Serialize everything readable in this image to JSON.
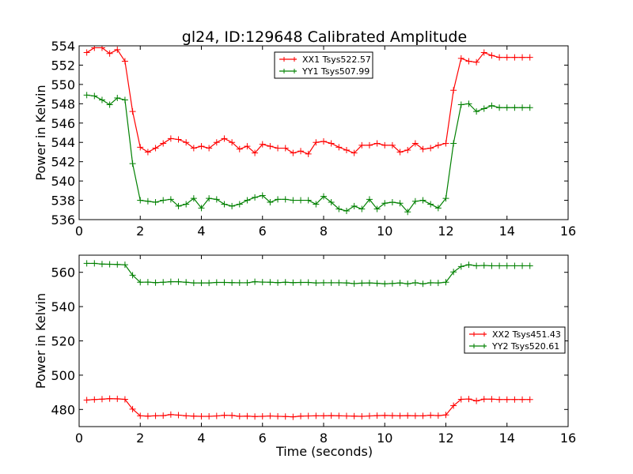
{
  "figure": {
    "title": "gl24, ID:129648 Calibrated Amplitude",
    "xlabel": "Time (seconds)"
  },
  "colors": {
    "red": "#ff0000",
    "green": "#008000"
  },
  "chart_data": [
    {
      "type": "line",
      "title": "gl24, ID:129648 Calibrated Amplitude",
      "xlabel": "",
      "ylabel": "Power in Kelvin",
      "xlim": [
        0,
        16
      ],
      "ylim": [
        536,
        554
      ],
      "xticks": [
        0,
        2,
        4,
        6,
        8,
        10,
        12,
        14,
        16
      ],
      "yticks": [
        536,
        538,
        540,
        542,
        544,
        546,
        548,
        550,
        552,
        554
      ],
      "grid": false,
      "legend_position": "top-center",
      "series": [
        {
          "name": "XX1 Tsys522.57",
          "color": "#ff0000",
          "marker": "+",
          "x": [
            0.25,
            0.5,
            0.75,
            1.0,
            1.25,
            1.5,
            1.75,
            2.0,
            2.25,
            2.5,
            2.75,
            3.0,
            3.25,
            3.5,
            3.75,
            4.0,
            4.25,
            4.5,
            4.75,
            5.0,
            5.25,
            5.5,
            5.75,
            6.0,
            6.25,
            6.5,
            6.75,
            7.0,
            7.25,
            7.5,
            7.75,
            8.0,
            8.25,
            8.5,
            8.75,
            9.0,
            9.25,
            9.5,
            9.75,
            10.0,
            10.25,
            10.5,
            10.75,
            11.0,
            11.25,
            11.5,
            11.75,
            12.0,
            12.25,
            12.5,
            12.75,
            13.0,
            13.25,
            13.5,
            13.75,
            14.0,
            14.25,
            14.5,
            14.75
          ],
          "y": [
            553.3,
            553.8,
            553.8,
            553.2,
            553.6,
            552.4,
            547.2,
            543.5,
            543.0,
            543.4,
            543.9,
            544.4,
            544.3,
            544.0,
            543.4,
            543.6,
            543.4,
            544.0,
            544.4,
            544.0,
            543.3,
            543.6,
            542.9,
            543.8,
            543.6,
            543.4,
            543.4,
            542.9,
            543.1,
            542.8,
            544.0,
            544.1,
            543.9,
            543.5,
            543.2,
            542.9,
            543.7,
            543.7,
            543.9,
            543.7,
            543.7,
            543.0,
            543.2,
            543.9,
            543.3,
            543.4,
            543.7,
            543.9,
            549.4,
            552.7,
            552.4,
            552.3,
            553.3,
            553.0,
            552.8,
            552.8,
            552.8,
            552.8,
            552.8
          ]
        },
        {
          "name": "YY1 Tsys507.99",
          "color": "#008000",
          "marker": "+",
          "x": [
            0.25,
            0.5,
            0.75,
            1.0,
            1.25,
            1.5,
            1.75,
            2.0,
            2.25,
            2.5,
            2.75,
            3.0,
            3.25,
            3.5,
            3.75,
            4.0,
            4.25,
            4.5,
            4.75,
            5.0,
            5.25,
            5.5,
            5.75,
            6.0,
            6.25,
            6.5,
            6.75,
            7.0,
            7.25,
            7.5,
            7.75,
            8.0,
            8.25,
            8.5,
            8.75,
            9.0,
            9.25,
            9.5,
            9.75,
            10.0,
            10.25,
            10.5,
            10.75,
            11.0,
            11.25,
            11.5,
            11.75,
            12.0,
            12.25,
            12.5,
            12.75,
            13.0,
            13.25,
            13.5,
            13.75,
            14.0,
            14.25,
            14.5,
            14.75
          ],
          "y": [
            548.9,
            548.8,
            548.4,
            547.9,
            548.6,
            548.4,
            541.8,
            538.0,
            537.9,
            537.8,
            538.0,
            538.1,
            537.4,
            537.6,
            538.2,
            537.2,
            538.2,
            538.1,
            537.6,
            537.4,
            537.6,
            538.0,
            538.3,
            538.5,
            537.8,
            538.1,
            538.1,
            538.0,
            538.0,
            538.0,
            537.6,
            538.4,
            537.8,
            537.1,
            536.9,
            537.4,
            537.1,
            538.1,
            537.1,
            537.7,
            537.8,
            537.7,
            536.8,
            537.9,
            538.0,
            537.6,
            537.2,
            538.2,
            543.9,
            547.9,
            548.0,
            547.2,
            547.5,
            547.8,
            547.6,
            547.6,
            547.6,
            547.6,
            547.6
          ]
        }
      ]
    },
    {
      "type": "line",
      "title": "",
      "xlabel": "Time (seconds)",
      "ylabel": "Power in Kelvin",
      "xlim": [
        0,
        16
      ],
      "ylim": [
        470,
        570
      ],
      "xticks": [
        0,
        2,
        4,
        6,
        8,
        10,
        12,
        14,
        16
      ],
      "yticks": [
        480,
        500,
        520,
        540,
        560
      ],
      "grid": false,
      "legend_position": "center-right",
      "series": [
        {
          "name": "XX2 Tsys451.43",
          "color": "#ff0000",
          "marker": "+",
          "x": [
            0.25,
            0.5,
            0.75,
            1.0,
            1.25,
            1.5,
            1.75,
            2.0,
            2.25,
            2.5,
            2.75,
            3.0,
            3.25,
            3.5,
            3.75,
            4.0,
            4.25,
            4.5,
            4.75,
            5.0,
            5.25,
            5.5,
            5.75,
            6.0,
            6.25,
            6.5,
            6.75,
            7.0,
            7.25,
            7.5,
            7.75,
            8.0,
            8.25,
            8.5,
            8.75,
            9.0,
            9.25,
            9.5,
            9.75,
            10.0,
            10.25,
            10.5,
            10.75,
            11.0,
            11.25,
            11.5,
            11.75,
            12.0,
            12.25,
            12.5,
            12.75,
            13.0,
            13.25,
            13.5,
            13.75,
            14.0,
            14.25,
            14.5,
            14.75
          ],
          "y": [
            485.5,
            485.8,
            486.0,
            486.3,
            486.2,
            485.9,
            480.2,
            476.3,
            476.1,
            476.3,
            476.4,
            477.0,
            476.7,
            476.3,
            476.1,
            476.0,
            476.0,
            476.2,
            476.6,
            476.5,
            476.0,
            476.1,
            475.9,
            476.0,
            476.2,
            476.0,
            475.9,
            475.7,
            476.1,
            476.2,
            476.3,
            476.3,
            476.4,
            476.3,
            476.2,
            476.1,
            476.0,
            476.2,
            476.4,
            476.5,
            476.4,
            476.3,
            476.4,
            476.3,
            476.3,
            476.6,
            476.4,
            476.8,
            482.2,
            485.9,
            486.1,
            485.0,
            486.0,
            486.0,
            485.8,
            485.8,
            485.8,
            485.8,
            485.8
          ]
        },
        {
          "name": "YY2 Tsys520.61",
          "color": "#008000",
          "marker": "+",
          "x": [
            0.25,
            0.5,
            0.75,
            1.0,
            1.25,
            1.5,
            1.75,
            2.0,
            2.25,
            2.5,
            2.75,
            3.0,
            3.25,
            3.5,
            3.75,
            4.0,
            4.25,
            4.5,
            4.75,
            5.0,
            5.25,
            5.5,
            5.75,
            6.0,
            6.25,
            6.5,
            6.75,
            7.0,
            7.25,
            7.5,
            7.75,
            8.0,
            8.25,
            8.5,
            8.75,
            9.0,
            9.25,
            9.5,
            9.75,
            10.0,
            10.25,
            10.5,
            10.75,
            11.0,
            11.25,
            11.5,
            11.75,
            12.0,
            12.25,
            12.5,
            12.75,
            13.0,
            13.25,
            13.5,
            13.75,
            14.0,
            14.25,
            14.5,
            14.75
          ],
          "y": [
            565.2,
            565.2,
            564.8,
            564.7,
            564.6,
            564.4,
            558.3,
            554.2,
            554.3,
            554.0,
            554.2,
            554.5,
            554.5,
            554.2,
            553.8,
            553.8,
            553.8,
            554.1,
            554.1,
            554.0,
            553.9,
            553.9,
            554.5,
            554.3,
            554.2,
            554.0,
            554.2,
            554.0,
            554.1,
            554.1,
            553.8,
            553.9,
            553.9,
            553.9,
            553.8,
            553.4,
            553.7,
            553.8,
            553.6,
            553.3,
            553.5,
            553.8,
            553.3,
            553.9,
            553.3,
            553.9,
            553.8,
            554.2,
            560.2,
            563.4,
            564.4,
            563.8,
            564.0,
            563.8,
            563.8,
            563.8,
            563.8,
            563.8,
            563.8
          ]
        }
      ]
    }
  ]
}
